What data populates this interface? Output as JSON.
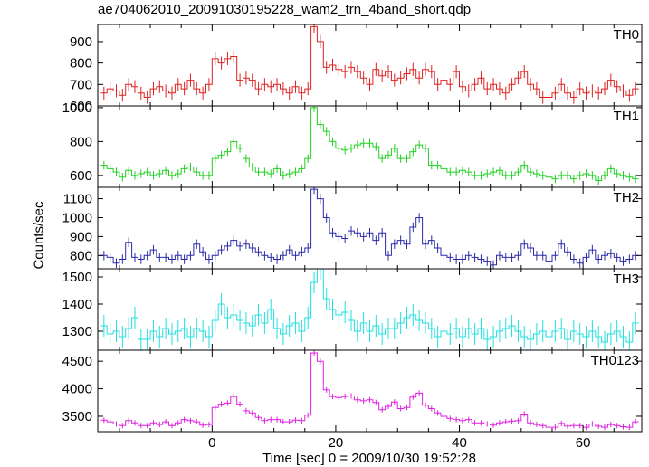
{
  "chart_data": {
    "type": "line",
    "title": "ae704062010_20091030195228_wam2_trn_4band_short.qdp",
    "ylabel": "Counts/sec",
    "xlabel": "Time [sec] 0 = 2009/10/30 19:52:28",
    "xlim": [
      -18.5,
      69.5
    ],
    "x_ticks": [
      0,
      20,
      40,
      60
    ],
    "bin_width": 1,
    "x": [
      -17.5,
      -16.5,
      -15.5,
      -14.5,
      -13.5,
      -12.5,
      -11.5,
      -10.5,
      -9.5,
      -8.5,
      -7.5,
      -6.5,
      -5.5,
      -4.5,
      -3.5,
      -2.5,
      -1.5,
      -0.5,
      0.5,
      1.5,
      2.5,
      3.5,
      4.5,
      5.5,
      6.5,
      7.5,
      8.5,
      9.5,
      10.5,
      11.5,
      12.5,
      13.5,
      14.5,
      15.5,
      16.5,
      17.5,
      18.5,
      19.5,
      20.5,
      21.5,
      22.5,
      23.5,
      24.5,
      25.5,
      26.5,
      27.5,
      28.5,
      29.5,
      30.5,
      31.5,
      32.5,
      33.5,
      34.5,
      35.5,
      36.5,
      37.5,
      38.5,
      39.5,
      40.5,
      41.5,
      42.5,
      43.5,
      44.5,
      45.5,
      46.5,
      47.5,
      48.5,
      49.5,
      50.5,
      51.5,
      52.5,
      53.5,
      54.5,
      55.5,
      56.5,
      57.5,
      58.5,
      59.5,
      60.5,
      61.5,
      62.5,
      63.5,
      64.5,
      65.5,
      66.5,
      67.5,
      68.5
    ],
    "series": [
      {
        "name": "TH0",
        "color": "#e02020",
        "ylim": [
          600,
          980
        ],
        "y_ticks": [
          600,
          700,
          800,
          900
        ],
        "y": [
          660,
          680,
          670,
          650,
          700,
          690,
          660,
          640,
          680,
          690,
          670,
          660,
          700,
          680,
          720,
          680,
          660,
          700,
          820,
          800,
          820,
          830,
          720,
          730,
          720,
          680,
          700,
          690,
          700,
          680,
          660,
          690,
          660,
          680,
          970,
          900,
          780,
          790,
          770,
          760,
          780,
          760,
          730,
          700,
          770,
          740,
          760,
          720,
          730,
          750,
          770,
          730,
          770,
          760,
          700,
          720,
          700,
          760,
          690,
          670,
          700,
          730,
          680,
          700,
          680,
          660,
          700,
          730,
          760,
          700,
          680,
          640,
          640,
          660,
          700,
          660,
          640,
          680,
          660,
          670,
          660,
          680,
          720,
          690,
          670,
          650,
          680
        ],
        "yerr": 30
      },
      {
        "name": "TH1",
        "color": "#20d020",
        "ylim": [
          530,
          1010
        ],
        "y_ticks": [
          600,
          800,
          1000
        ],
        "y": [
          660,
          640,
          620,
          590,
          630,
          600,
          610,
          620,
          600,
          610,
          630,
          600,
          610,
          640,
          650,
          620,
          600,
          600,
          700,
          720,
          740,
          800,
          760,
          700,
          650,
          620,
          620,
          610,
          640,
          600,
          610,
          620,
          640,
          700,
          1000,
          900,
          860,
          800,
          760,
          750,
          760,
          780,
          790,
          790,
          770,
          700,
          720,
          760,
          700,
          700,
          740,
          780,
          760,
          660,
          660,
          640,
          620,
          620,
          630,
          620,
          600,
          600,
          610,
          620,
          630,
          600,
          600,
          620,
          660,
          620,
          610,
          600,
          590,
          580,
          600,
          600,
          580,
          600,
          610,
          600,
          570,
          600,
          640,
          610,
          600,
          590,
          580
        ],
        "yerr": 25
      },
      {
        "name": "TH2",
        "color": "#2a2aa8",
        "ylim": [
          730,
          1160
        ],
        "y_ticks": [
          800,
          900,
          1000,
          1100
        ],
        "y": [
          800,
          790,
          760,
          780,
          870,
          790,
          780,
          800,
          830,
          790,
          790,
          780,
          800,
          780,
          800,
          860,
          820,
          780,
          800,
          830,
          850,
          880,
          850,
          860,
          840,
          820,
          800,
          790,
          780,
          800,
          830,
          800,
          820,
          840,
          1150,
          1100,
          1000,
          920,
          900,
          890,
          930,
          920,
          900,
          920,
          880,
          920,
          800,
          860,
          880,
          860,
          950,
          1000,
          860,
          880,
          840,
          800,
          790,
          780,
          780,
          800,
          790,
          780,
          770,
          750,
          800,
          790,
          790,
          800,
          860,
          840,
          800,
          800,
          770,
          800,
          860,
          820,
          780,
          760,
          790,
          830,
          780,
          800,
          810,
          790,
          770,
          780,
          800
        ],
        "yerr": 25
      },
      {
        "name": "TH3",
        "color": "#20e0e0",
        "ylim": [
          1230,
          1530
        ],
        "y_ticks": [
          1300,
          1400,
          1500
        ],
        "y": [
          1320,
          1290,
          1300,
          1280,
          1310,
          1350,
          1270,
          1270,
          1300,
          1280,
          1310,
          1290,
          1300,
          1310,
          1280,
          1310,
          1300,
          1280,
          1340,
          1400,
          1350,
          1360,
          1340,
          1330,
          1320,
          1360,
          1330,
          1380,
          1310,
          1290,
          1320,
          1330,
          1300,
          1350,
          1480,
          1530,
          1420,
          1380,
          1360,
          1370,
          1340,
          1300,
          1330,
          1300,
          1320,
          1290,
          1310,
          1310,
          1330,
          1350,
          1360,
          1340,
          1330,
          1310,
          1280,
          1300,
          1290,
          1310,
          1280,
          1310,
          1290,
          1310,
          1270,
          1280,
          1300,
          1310,
          1320,
          1300,
          1280,
          1270,
          1290,
          1300,
          1280,
          1300,
          1310,
          1270,
          1300,
          1290,
          1280,
          1300,
          1280,
          1260,
          1290,
          1300,
          1280,
          1260,
          1330
        ],
        "yerr": 40
      },
      {
        "name": "TH0123",
        "color": "#e020e0",
        "ylim": [
          3220,
          4700
        ],
        "y_ticks": [
          3500,
          4000,
          4500
        ],
        "y": [
          3430,
          3400,
          3360,
          3330,
          3420,
          3380,
          3330,
          3330,
          3380,
          3350,
          3400,
          3330,
          3380,
          3440,
          3420,
          3400,
          3340,
          3350,
          3660,
          3720,
          3740,
          3860,
          3720,
          3600,
          3560,
          3480,
          3420,
          3440,
          3440,
          3400,
          3400,
          3430,
          3420,
          3520,
          4650,
          4500,
          3980,
          3860,
          3840,
          3860,
          3870,
          3800,
          3780,
          3800,
          3750,
          3620,
          3680,
          3760,
          3640,
          3660,
          3850,
          3920,
          3700,
          3640,
          3560,
          3500,
          3460,
          3440,
          3420,
          3440,
          3380,
          3380,
          3360,
          3340,
          3380,
          3400,
          3410,
          3420,
          3540,
          3380,
          3350,
          3330,
          3300,
          3300,
          3370,
          3320,
          3330,
          3330,
          3300,
          3360,
          3320,
          3300,
          3350,
          3330,
          3310,
          3300,
          3400
        ],
        "yerr": 50
      }
    ]
  }
}
